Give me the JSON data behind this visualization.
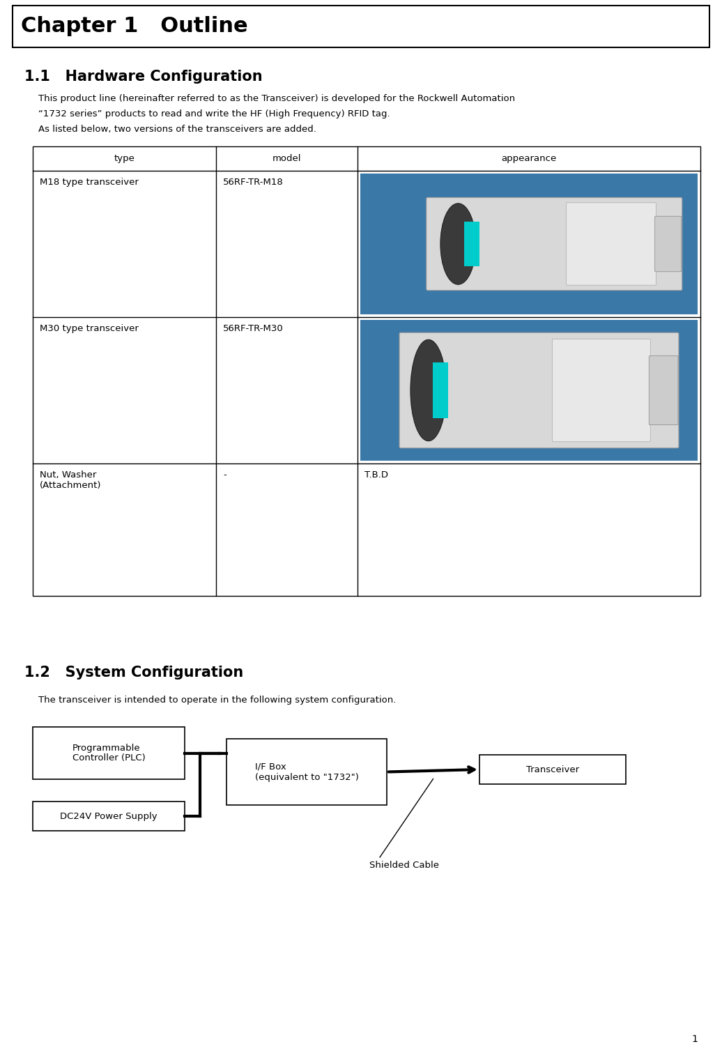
{
  "page_width": 10.36,
  "page_height": 15.18,
  "bg_color": "#ffffff",
  "chapter_title": "Chapter 1   Outline",
  "chapter_title_fontsize": 22,
  "section1_title": "1.1   Hardware Configuration",
  "section1_fontsize": 15,
  "para1_lines": [
    "This product line (hereinafter referred to as the Transceiver) is developed for the Rockwell Automation",
    "“1732 series” products to read and write the HF (High Frequency) RFID tag.",
    "As listed below, two versions of the transceivers are added."
  ],
  "para1_fontsize": 9.5,
  "table_header_labels": [
    "type",
    "model",
    "appearance"
  ],
  "table_font": 9.5,
  "row1_type": "M18 type transceiver",
  "row1_model": "56RF-TR-M18",
  "row2_type": "M30 type transceiver",
  "row2_model": "56RF-TR-M30",
  "row3_type": "Nut, Washer\n(Attachment)",
  "row3_model": "-",
  "row3_appear": "T.B.D",
  "img1_bg": "#3a78a8",
  "img2_bg": "#3a78a8",
  "section2_title": "1.2   System Configuration",
  "section2_fontsize": 15,
  "para2_text": "The transceiver is intended to operate in the following system configuration.",
  "para2_fontsize": 9.5,
  "box_plc_label": "Programmable\nController (PLC)",
  "box_pwr_label": "DC24V Power Supply",
  "box_ifb_label": "I/F Box\n(equivalent to \"1732\")",
  "box_tr_label": "Transceiver",
  "shielded_cable_label": "Shielded Cable",
  "page_num": "1",
  "line_color": "#000000",
  "text_color": "#000000"
}
